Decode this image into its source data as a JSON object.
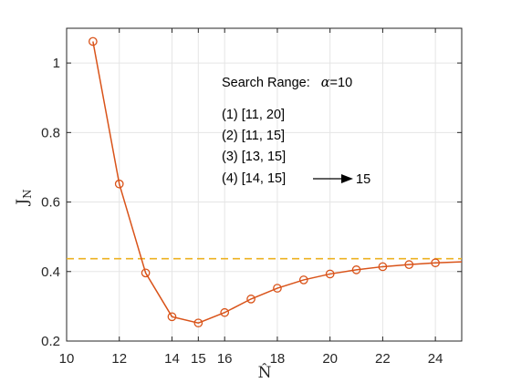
{
  "chart_data": {
    "type": "line",
    "xlabel": "N̂",
    "ylabel": "J",
    "ylabel_sub": "N",
    "xlim": [
      10,
      25
    ],
    "ylim": [
      0.2,
      1.1
    ],
    "xticks": [
      10,
      12,
      14,
      15,
      16,
      18,
      20,
      22,
      24
    ],
    "yticks": [
      0.2,
      0.4,
      0.6,
      0.8,
      1
    ],
    "ytick_labels": [
      "0.2",
      "0.4",
      "0.6",
      "0.8",
      "1"
    ],
    "grid": true,
    "series": [
      {
        "color": "#d95319",
        "marker": "circle",
        "x": [
          11,
          12,
          13,
          14,
          15,
          16,
          17,
          18,
          19,
          20,
          21,
          22,
          23,
          24,
          25
        ],
        "y": [
          1.062,
          0.652,
          0.396,
          0.27,
          0.252,
          0.282,
          0.321,
          0.352,
          0.376,
          0.393,
          0.405,
          0.414,
          0.42,
          0.425,
          0.428
        ],
        "marker_count": 14
      }
    ],
    "reference_line": {
      "y": 0.437,
      "color": "#edb120",
      "style": "dashed"
    },
    "annotations": {
      "heading": "Search Range:",
      "alpha_symbol": "α",
      "alpha_value": "=10",
      "ranges": [
        "(1)  [11,  20]",
        "(2)  [11,  15]",
        "(3)  [13,  15]",
        "(4)  [14,  15]"
      ],
      "result": "15"
    }
  }
}
